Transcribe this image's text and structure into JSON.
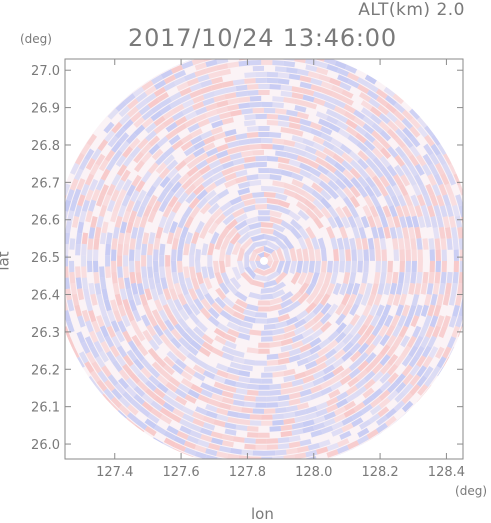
{
  "header": {
    "altitude_label": "ALT(km) 2.0",
    "datetime": "2017/10/24 13:46:00"
  },
  "axes": {
    "y_unit": "(deg)",
    "x_unit": "(deg)",
    "xlabel": "lon",
    "ylabel": "lat"
  },
  "chart_data": {
    "type": "heatmap",
    "description_of_field": "radar PPI doppler-like field (blue/white/red) inside circular range",
    "x": {
      "label": "lon",
      "range": [
        127.25,
        128.45
      ],
      "ticks": [
        127.4,
        127.6,
        127.8,
        128.0,
        128.2,
        128.4
      ],
      "tick_labels": [
        "127.4",
        "127.6",
        "127.8",
        "128.0",
        "128.2",
        "128.4"
      ]
    },
    "y": {
      "label": "lat",
      "range": [
        25.96,
        27.03
      ],
      "ticks": [
        26.0,
        26.1,
        26.2,
        26.3,
        26.4,
        26.5,
        26.6,
        26.7,
        26.8,
        26.9,
        27.0
      ],
      "tick_labels": [
        "26.0",
        "26.1",
        "26.2",
        "26.3",
        "26.4",
        "26.5",
        "26.6",
        "26.7",
        "26.8",
        "26.9",
        "27.0"
      ]
    },
    "center": {
      "lon": 127.85,
      "lat": 26.49
    },
    "colors": {
      "negative": "#c4c9f3",
      "positive": "#f6c0c0",
      "neutral": "#ffffff",
      "axis": "#8a8a8a"
    }
  }
}
